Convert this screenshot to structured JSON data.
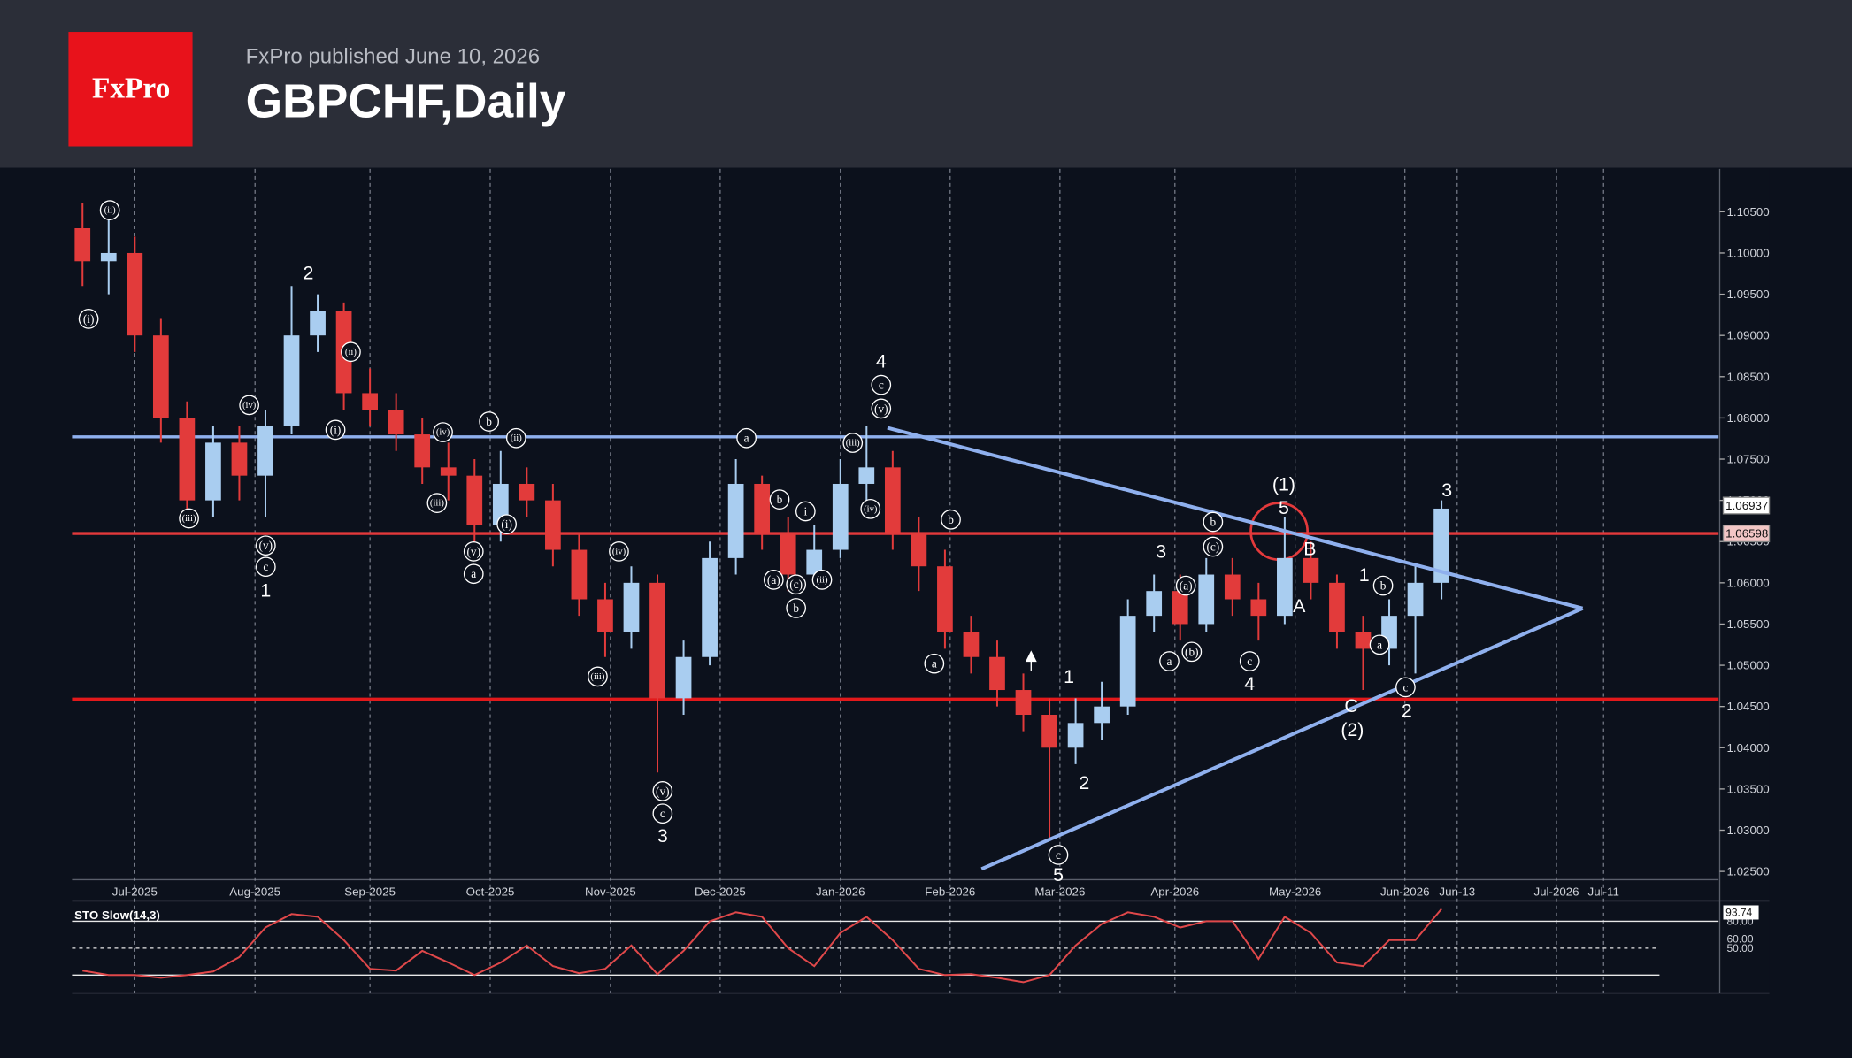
{
  "header": {
    "logo": "FxPro",
    "published": "FxPro published June 10, 2026",
    "title": "GBPCHF,Daily"
  },
  "chart_data": [
    {
      "type": "candlestick",
      "x": [
        -10,
        -5,
        0,
        5,
        10,
        15,
        20,
        25,
        30,
        35,
        40,
        45,
        50,
        55,
        60,
        65,
        70,
        75,
        80,
        85,
        90,
        95,
        100,
        105,
        110,
        115,
        120,
        125,
        130,
        135,
        140,
        145,
        150,
        155,
        160,
        165,
        170,
        175,
        180,
        185,
        190,
        195,
        200,
        205,
        210,
        215,
        220,
        225,
        230,
        235,
        240,
        245,
        250
      ],
      "open": [
        1.103,
        1.099,
        1.1,
        1.09,
        1.08,
        1.07,
        1.077,
        1.073,
        1.079,
        1.09,
        1.093,
        1.083,
        1.081,
        1.078,
        1.074,
        1.073,
        1.067,
        1.072,
        1.07,
        1.064,
        1.058,
        1.054,
        1.06,
        1.046,
        1.051,
        1.063,
        1.072,
        1.066,
        1.061,
        1.064,
        1.072,
        1.074,
        1.066,
        1.062,
        1.054,
        1.051,
        1.047,
        1.044,
        1.04,
        1.043,
        1.045,
        1.056,
        1.059,
        1.055,
        1.061,
        1.058,
        1.056,
        1.063,
        1.06,
        1.054,
        1.052,
        1.056,
        1.06
      ],
      "high": [
        1.106,
        1.104,
        1.102,
        1.092,
        1.082,
        1.079,
        1.079,
        1.081,
        1.096,
        1.095,
        1.094,
        1.086,
        1.083,
        1.08,
        1.077,
        1.075,
        1.076,
        1.074,
        1.072,
        1.066,
        1.06,
        1.062,
        1.061,
        1.053,
        1.065,
        1.075,
        1.073,
        1.068,
        1.067,
        1.075,
        1.079,
        1.076,
        1.068,
        1.064,
        1.056,
        1.053,
        1.049,
        1.046,
        1.046,
        1.048,
        1.058,
        1.061,
        1.061,
        1.063,
        1.063,
        1.06,
        1.068,
        1.065,
        1.061,
        1.056,
        1.058,
        1.062,
        1.07
      ],
      "low": [
        1.096,
        1.095,
        1.088,
        1.077,
        1.068,
        1.068,
        1.07,
        1.068,
        1.078,
        1.088,
        1.081,
        1.079,
        1.076,
        1.072,
        1.07,
        1.065,
        1.065,
        1.068,
        1.062,
        1.056,
        1.051,
        1.052,
        1.037,
        1.044,
        1.05,
        1.061,
        1.064,
        1.059,
        1.06,
        1.063,
        1.07,
        1.064,
        1.059,
        1.052,
        1.049,
        1.045,
        1.042,
        1.029,
        1.038,
        1.041,
        1.044,
        1.054,
        1.053,
        1.054,
        1.056,
        1.053,
        1.055,
        1.058,
        1.052,
        1.047,
        1.05,
        1.049,
        1.058
      ],
      "close": [
        1.099,
        1.1,
        1.09,
        1.08,
        1.07,
        1.077,
        1.073,
        1.079,
        1.09,
        1.093,
        1.083,
        1.081,
        1.078,
        1.074,
        1.073,
        1.067,
        1.072,
        1.07,
        1.064,
        1.058,
        1.054,
        1.06,
        1.046,
        1.051,
        1.063,
        1.072,
        1.066,
        1.061,
        1.064,
        1.072,
        1.074,
        1.066,
        1.062,
        1.054,
        1.051,
        1.047,
        1.044,
        1.04,
        1.043,
        1.045,
        1.056,
        1.059,
        1.055,
        1.061,
        1.058,
        1.056,
        1.063,
        1.06,
        1.054,
        1.052,
        1.056,
        1.06,
        1.069
      ],
      "up_color": "#a9cdf0",
      "down_color": "#e23b3b",
      "xlim": [
        -12,
        303
      ],
      "xticks": [
        {
          "value": 0,
          "label": "Jul-2025"
        },
        {
          "value": 23,
          "label": "Aug-2025"
        },
        {
          "value": 45,
          "label": "Sep-2025"
        },
        {
          "value": 68,
          "label": "Oct-2025"
        },
        {
          "value": 91,
          "label": "Nov-2025"
        },
        {
          "value": 112,
          "label": "Dec-2025"
        },
        {
          "value": 135,
          "label": "Jan-2026"
        },
        {
          "value": 156,
          "label": "Feb-2026"
        },
        {
          "value": 177,
          "label": "Mar-2026"
        },
        {
          "value": 199,
          "label": "Apr-2026"
        },
        {
          "value": 222,
          "label": "May-2026"
        },
        {
          "value": 243,
          "label": "Jun-2026"
        },
        {
          "value": 253,
          "label": "Jun-13"
        },
        {
          "value": 272,
          "label": "Jul-2026"
        },
        {
          "value": 281,
          "label": "Jul-11"
        }
      ],
      "ylim": [
        1.024,
        1.1102
      ],
      "yticks": [
        {
          "value": 1.025,
          "label": "1.02500"
        },
        {
          "value": 1.03,
          "label": "1.03000"
        },
        {
          "value": 1.035,
          "label": "1.03500"
        },
        {
          "value": 1.04,
          "label": "1.04000"
        },
        {
          "value": 1.045,
          "label": "1.04500"
        },
        {
          "value": 1.05,
          "label": "1.05000"
        },
        {
          "value": 1.055,
          "label": "1.05500"
        },
        {
          "value": 1.06,
          "label": "1.06000"
        },
        {
          "value": 1.065,
          "label": "1.06500"
        },
        {
          "value": 1.07,
          "label": "1.07000"
        },
        {
          "value": 1.075,
          "label": "1.07500"
        },
        {
          "value": 1.08,
          "label": "1.08000"
        },
        {
          "value": 1.085,
          "label": "1.08500"
        },
        {
          "value": 1.09,
          "label": "1.09000"
        },
        {
          "value": 1.095,
          "label": "1.09500"
        },
        {
          "value": 1.1,
          "label": "1.10000"
        },
        {
          "value": 1.105,
          "label": "1.10500"
        }
      ],
      "grid": true,
      "hlines": [
        {
          "value": 1.0777,
          "color": "#8fb0ee"
        },
        {
          "value": 1.06598,
          "color": "#e3393b"
        },
        {
          "value": 1.0459,
          "color": "#e3191b"
        }
      ],
      "trendlines": [
        {
          "x": [
            144,
            277
          ],
          "y": [
            1.0788,
            1.0569
          ],
          "color": "#8fb0ee"
        },
        {
          "x": [
            162,
            277
          ],
          "y": [
            1.0253,
            1.0569
          ],
          "color": "#8fb0ee"
        }
      ],
      "price_labels": [
        {
          "value": 1.06937,
          "label": "1.06937",
          "color": "#ffffff"
        },
        {
          "value": 1.06598,
          "label": "1.06598",
          "color": "#f3c6c6"
        }
      ],
      "annotations": [
        {
          "text": "(ii)",
          "circled": true
        },
        {
          "text": "(i)",
          "circled": true
        },
        {
          "text": "(iii)",
          "circled": true
        },
        {
          "text": "(iv)",
          "circled": true
        },
        {
          "text": "(v)",
          "circled": true
        },
        {
          "text": "c",
          "circled": true
        },
        {
          "text": "1",
          "circled": false
        },
        {
          "text": "2",
          "circled": false
        },
        {
          "text": "(ii)",
          "circled": true
        },
        {
          "text": "(i)",
          "circled": true
        },
        {
          "text": "(iv)",
          "circled": true
        },
        {
          "text": "b",
          "circled": true
        },
        {
          "text": "(ii)",
          "circled": true
        },
        {
          "text": "(iii)",
          "circled": true
        },
        {
          "text": "(i)",
          "circled": true
        },
        {
          "text": "(v)",
          "circled": true
        },
        {
          "text": "a",
          "circled": true
        },
        {
          "text": "(iv)",
          "circled": true
        },
        {
          "text": "(iii)",
          "circled": true
        },
        {
          "text": "(v)",
          "circled": true
        },
        {
          "text": "c",
          "circled": true
        },
        {
          "text": "3",
          "circled": false
        },
        {
          "text": "a",
          "circled": true
        },
        {
          "text": "b",
          "circled": true
        },
        {
          "text": "i",
          "circled": true
        },
        {
          "text": "(a)",
          "circled": true
        },
        {
          "text": "(c)",
          "circled": true
        },
        {
          "text": "b",
          "circled": true
        },
        {
          "text": "(ii)",
          "circled": true
        },
        {
          "text": "(iii)",
          "circled": true
        },
        {
          "text": "(iv)",
          "circled": true
        },
        {
          "text": "4",
          "circled": false
        },
        {
          "text": "c",
          "circled": true
        },
        {
          "text": "(v)",
          "circled": true
        },
        {
          "text": "b",
          "circled": true
        },
        {
          "text": "a",
          "circled": true
        },
        {
          "text": "1",
          "circled": false
        },
        {
          "text": "2",
          "circled": false
        },
        {
          "text": "c",
          "circled": true
        },
        {
          "text": "5",
          "circled": false
        },
        {
          "text": "3",
          "circled": false
        },
        {
          "text": "a",
          "circled": true
        },
        {
          "text": "(b)",
          "circled": true
        },
        {
          "text": "(a)",
          "circled": true
        },
        {
          "text": "b",
          "circled": true
        },
        {
          "text": "(c)",
          "circled": true
        },
        {
          "text": "c",
          "circled": true
        },
        {
          "text": "4",
          "circled": false
        },
        {
          "text": "(1)",
          "circled": false
        },
        {
          "text": "5",
          "circled": false
        },
        {
          "text": "B",
          "circled": false
        },
        {
          "text": "A",
          "circled": false
        },
        {
          "text": "1",
          "circled": false
        },
        {
          "text": "b",
          "circled": true
        },
        {
          "text": "a",
          "circled": true
        },
        {
          "text": "C",
          "circled": false
        },
        {
          "text": "(2)",
          "circled": false
        },
        {
          "text": "c",
          "circled": true
        },
        {
          "text": "2",
          "circled": false
        },
        {
          "text": "3",
          "circled": false
        }
      ]
    },
    {
      "type": "line",
      "title": "STO Slow(14,3)",
      "x": [
        -10,
        -5,
        0,
        5,
        10,
        15,
        20,
        25,
        30,
        35,
        40,
        45,
        50,
        55,
        60,
        65,
        70,
        75,
        80,
        85,
        90,
        95,
        100,
        105,
        110,
        115,
        120,
        125,
        130,
        135,
        140,
        145,
        150,
        155,
        160,
        165,
        170,
        175,
        180,
        185,
        190,
        195,
        200,
        205,
        210,
        215,
        220,
        225,
        230,
        235,
        240,
        245,
        250
      ],
      "values": [
        25,
        20,
        20,
        17,
        20,
        24,
        40,
        73,
        88,
        85,
        59,
        27,
        25,
        47,
        34,
        20,
        34,
        53,
        30,
        22,
        27,
        53,
        21,
        47,
        80,
        90,
        85,
        50,
        30,
        67,
        85,
        59,
        27,
        20,
        21,
        17,
        12,
        20,
        53,
        77,
        90,
        85,
        73,
        80,
        80,
        38,
        85,
        67,
        34,
        30,
        59,
        59,
        93.74
      ],
      "color": "#e0484a",
      "ylim": [
        0,
        100
      ],
      "yticks": [
        {
          "value": 80,
          "label": "80.00"
        },
        {
          "value": 60,
          "label": "60.00"
        },
        {
          "value": 50,
          "label": "50.00"
        }
      ],
      "levels": [
        80,
        50,
        20
      ],
      "price_labels": [
        {
          "value": 93.74,
          "label": "93.74"
        }
      ]
    }
  ]
}
